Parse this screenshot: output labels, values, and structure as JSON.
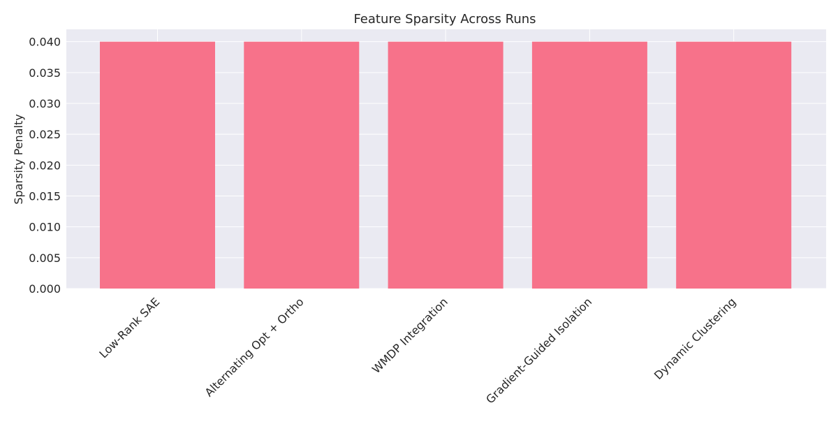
{
  "chart_data": {
    "type": "bar",
    "title": "Feature Sparsity Across Runs",
    "xlabel": "",
    "ylabel": "Sparsity Penalty",
    "categories": [
      "Low-Rank SAE",
      "Alternating Opt + Ortho",
      "WMDP Integration",
      "Gradient-Guided Isolation",
      "Dynamic Clustering"
    ],
    "values": [
      0.04,
      0.04,
      0.04,
      0.04,
      0.04
    ],
    "ylim": [
      0,
      0.042
    ],
    "yticks": [
      "0.000",
      "0.005",
      "0.010",
      "0.015",
      "0.020",
      "0.025",
      "0.030",
      "0.035",
      "0.040"
    ],
    "grid": true,
    "bar_color": "#f7728a",
    "background_color": "#eaeaf2"
  }
}
